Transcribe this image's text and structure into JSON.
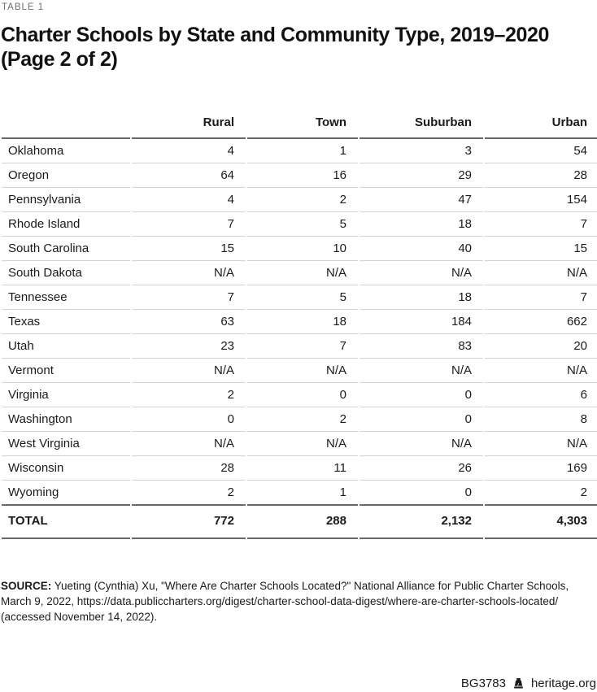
{
  "page": {
    "table_label": "TABLE 1",
    "title_line1": "Charter Schools by State and Community Type, 2019–2020",
    "title_line2": "(Page 2 of 2)",
    "source_label": "SOURCE:",
    "source_text": " Yueting (Cynthia) Xu, \"Where Are Charter Schools Located?\" National Alliance for Public Charter Schools, March 9, 2022, https://data.publiccharters.org/digest/charter-school-data-digest/where-are-charter-schools-located/ (accessed November 14, 2022).",
    "footer": {
      "doc_id": "BG3783",
      "site": "heritage.org",
      "icon": "liberty-bell-icon"
    }
  },
  "chart_data": {
    "type": "table",
    "title": "Charter Schools by State and Community Type, 2019–2020 (Page 2 of 2)",
    "columns": [
      "",
      "Rural",
      "Town",
      "Suburban",
      "Urban"
    ],
    "rows": [
      {
        "state": "Oklahoma",
        "values": [
          "4",
          "1",
          "3",
          "54"
        ]
      },
      {
        "state": "Oregon",
        "values": [
          "64",
          "16",
          "29",
          "28"
        ]
      },
      {
        "state": "Pennsylvania",
        "values": [
          "4",
          "2",
          "47",
          "154"
        ]
      },
      {
        "state": "Rhode Island",
        "values": [
          "7",
          "5",
          "18",
          "7"
        ]
      },
      {
        "state": "South Carolina",
        "values": [
          "15",
          "10",
          "40",
          "15"
        ]
      },
      {
        "state": "South Dakota",
        "values": [
          "N/A",
          "N/A",
          "N/A",
          "N/A"
        ]
      },
      {
        "state": "Tennessee",
        "values": [
          "7",
          "5",
          "18",
          "7"
        ]
      },
      {
        "state": "Texas",
        "values": [
          "63",
          "18",
          "184",
          "662"
        ]
      },
      {
        "state": "Utah",
        "values": [
          "23",
          "7",
          "83",
          "20"
        ]
      },
      {
        "state": "Vermont",
        "values": [
          "N/A",
          "N/A",
          "N/A",
          "N/A"
        ]
      },
      {
        "state": "Virginia",
        "values": [
          "2",
          "0",
          "0",
          "6"
        ]
      },
      {
        "state": "Washington",
        "values": [
          "0",
          "2",
          "0",
          "8"
        ]
      },
      {
        "state": "West Virginia",
        "values": [
          "N/A",
          "N/A",
          "N/A",
          "N/A"
        ]
      },
      {
        "state": "Wisconsin",
        "values": [
          "28",
          "11",
          "26",
          "169"
        ]
      },
      {
        "state": "Wyoming",
        "values": [
          "2",
          "1",
          "0",
          "2"
        ]
      }
    ],
    "total": {
      "label": "TOTAL",
      "values": [
        "772",
        "288",
        "2,132",
        "4,303"
      ]
    }
  }
}
